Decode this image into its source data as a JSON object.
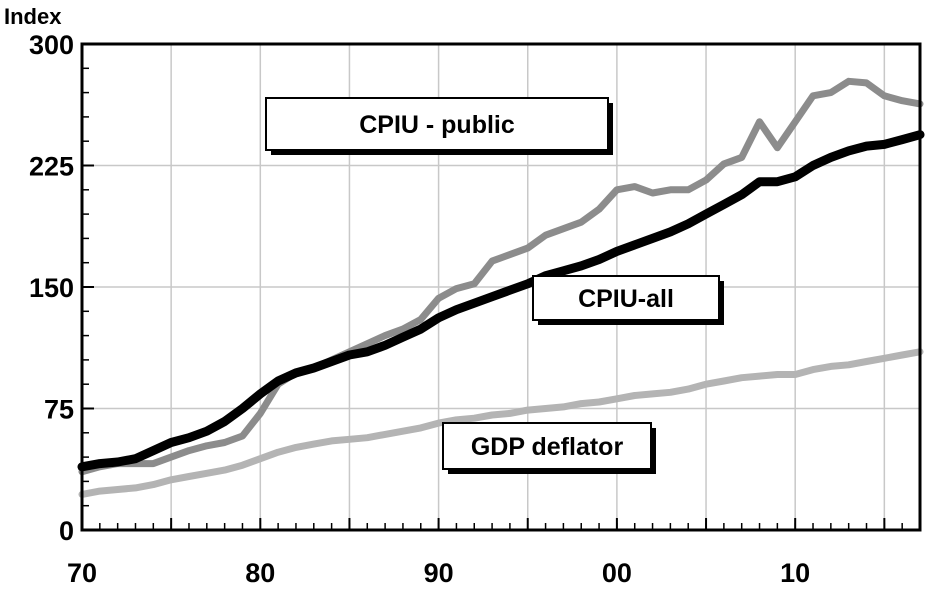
{
  "chart_data": {
    "type": "line",
    "ylabel": "Index",
    "xlabel": "",
    "x_tick_labels": [
      "70",
      "80",
      "90",
      "00",
      "10"
    ],
    "x_tick_years": [
      1970,
      1980,
      1990,
      2000,
      2010
    ],
    "xlim": [
      1970,
      2017
    ],
    "ylim": [
      0,
      300
    ],
    "y_ticks": [
      0,
      75,
      150,
      225,
      300
    ],
    "y_tick_labels": [
      "0",
      "75",
      "150",
      "225",
      "300"
    ],
    "grid": true,
    "x": [
      1970,
      1971,
      1972,
      1973,
      1974,
      1975,
      1976,
      1977,
      1978,
      1979,
      1980,
      1981,
      1982,
      1983,
      1984,
      1985,
      1986,
      1987,
      1988,
      1989,
      1990,
      1991,
      1992,
      1993,
      1994,
      1995,
      1996,
      1997,
      1998,
      1999,
      2000,
      2001,
      2002,
      2003,
      2004,
      2005,
      2006,
      2007,
      2008,
      2009,
      2010,
      2011,
      2012,
      2013,
      2014,
      2015,
      2016,
      2017
    ],
    "series": [
      {
        "name": "CPIU - public",
        "color": "#8c8c8c",
        "values": [
          36,
          39,
          41,
          41,
          41,
          45,
          49,
          52,
          54,
          58,
          72,
          90,
          97,
          100,
          105,
          110,
          115,
          120,
          124,
          130,
          143,
          149,
          152,
          166,
          170,
          174,
          182,
          186,
          190,
          198,
          210,
          212,
          208,
          210,
          210,
          216,
          226,
          230,
          252,
          236,
          252,
          268,
          270,
          277,
          276,
          268,
          265,
          263
        ]
      },
      {
        "name": "CPIU-all",
        "color": "#000000",
        "values": [
          39,
          41,
          42,
          44,
          49,
          54,
          57,
          61,
          67,
          75,
          84,
          92,
          97,
          100,
          104,
          108,
          110,
          114,
          119,
          124,
          131,
          136,
          140,
          144,
          148,
          152,
          157,
          160,
          163,
          167,
          172,
          176,
          180,
          184,
          189,
          195,
          201,
          207,
          215,
          215,
          218,
          225,
          230,
          234,
          237,
          238,
          241,
          244
        ]
      },
      {
        "name": "GDP deflator",
        "color": "#b4b4b4",
        "values": [
          22,
          24,
          25,
          26,
          28,
          31,
          33,
          35,
          37,
          40,
          44,
          48,
          51,
          53,
          55,
          56,
          57,
          59,
          61,
          63,
          66,
          68,
          69,
          71,
          72,
          74,
          75,
          76,
          78,
          79,
          81,
          83,
          84,
          85,
          87,
          90,
          92,
          94,
          95,
          96,
          96,
          99,
          101,
          102,
          104,
          106,
          108,
          110
        ]
      }
    ],
    "legend_boxes": [
      {
        "label": "CPIU - public",
        "placement": "upper-left"
      },
      {
        "label": "CPIU-all",
        "placement": "middle-right"
      },
      {
        "label": "GDP deflator",
        "placement": "lower-middle"
      }
    ]
  }
}
